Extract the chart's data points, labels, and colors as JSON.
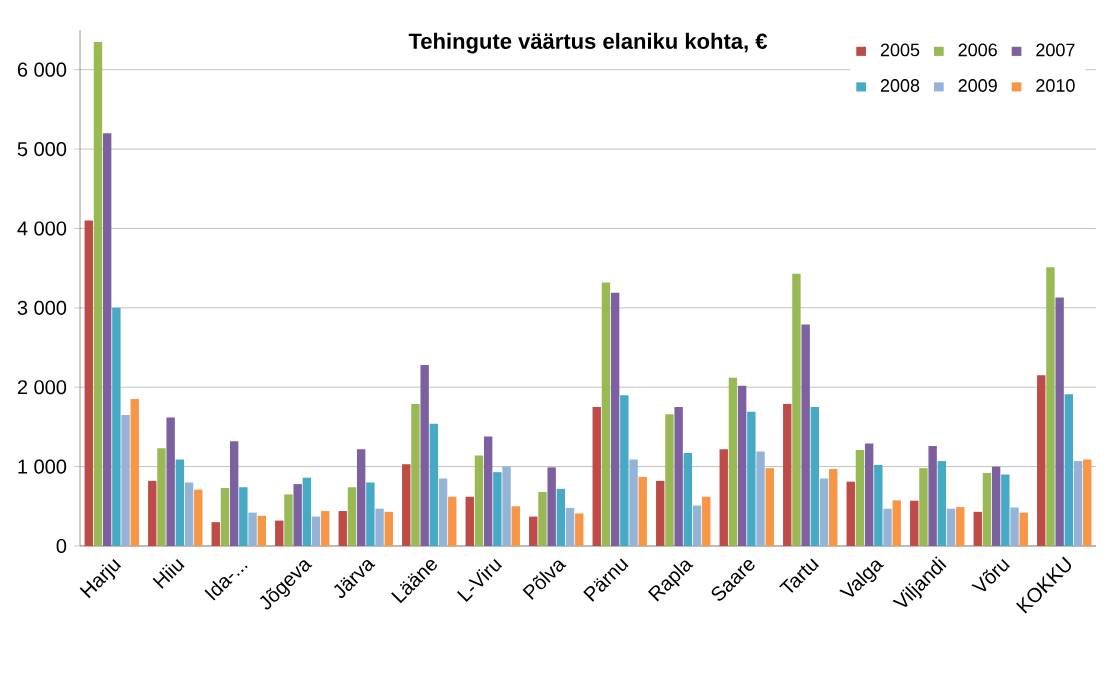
{
  "chart_data": {
    "type": "bar",
    "title": "Tehingute väärtus elaniku kohta, €",
    "categories": [
      "Harju",
      "Hiiu",
      "Ida-...",
      "Jõgeva",
      "Järva",
      "Lääne",
      "L-Viru",
      "Põlva",
      "Pärnu",
      "Rapla",
      "Saare",
      "Tartu",
      "Valga",
      "Viljandi",
      "Võru",
      "KOKKU"
    ],
    "series": [
      {
        "name": "2005",
        "color": "#be4b48",
        "values": [
          4100,
          820,
          300,
          320,
          440,
          1030,
          620,
          370,
          1750,
          820,
          1220,
          1790,
          810,
          570,
          430,
          2150
        ]
      },
      {
        "name": "2006",
        "color": "#98b954",
        "values": [
          6350,
          1230,
          730,
          650,
          740,
          1790,
          1140,
          680,
          3320,
          1660,
          2120,
          3430,
          1210,
          980,
          920,
          3510
        ]
      },
      {
        "name": "2007",
        "color": "#7d60a0",
        "values": [
          5200,
          1620,
          1320,
          780,
          1220,
          2280,
          1380,
          990,
          3190,
          1750,
          2020,
          2790,
          1290,
          1260,
          1000,
          3130
        ]
      },
      {
        "name": "2008",
        "color": "#46aac5",
        "values": [
          3000,
          1090,
          740,
          860,
          800,
          1540,
          930,
          720,
          1900,
          1170,
          1690,
          1750,
          1020,
          1070,
          900,
          1910
        ]
      },
      {
        "name": "2009",
        "color": "#95b3d7",
        "values": [
          1650,
          800,
          420,
          370,
          470,
          850,
          1000,
          480,
          1090,
          510,
          1190,
          850,
          470,
          470,
          485,
          1070
        ]
      },
      {
        "name": "2010",
        "color": "#f79646",
        "values": [
          1850,
          710,
          380,
          440,
          430,
          620,
          500,
          410,
          870,
          620,
          980,
          970,
          575,
          490,
          420,
          1090
        ]
      }
    ],
    "ylim": [
      0,
      6500
    ],
    "yticks": [
      {
        "value": 0,
        "label": "0"
      },
      {
        "value": 1000,
        "label": "1 000"
      },
      {
        "value": 2000,
        "label": "2 000"
      },
      {
        "value": 3000,
        "label": "3 000"
      },
      {
        "value": 4000,
        "label": "4 000"
      },
      {
        "value": 5000,
        "label": "5 000"
      },
      {
        "value": 6000,
        "label": "6 000"
      }
    ],
    "grid": "y",
    "legend": "top right"
  }
}
